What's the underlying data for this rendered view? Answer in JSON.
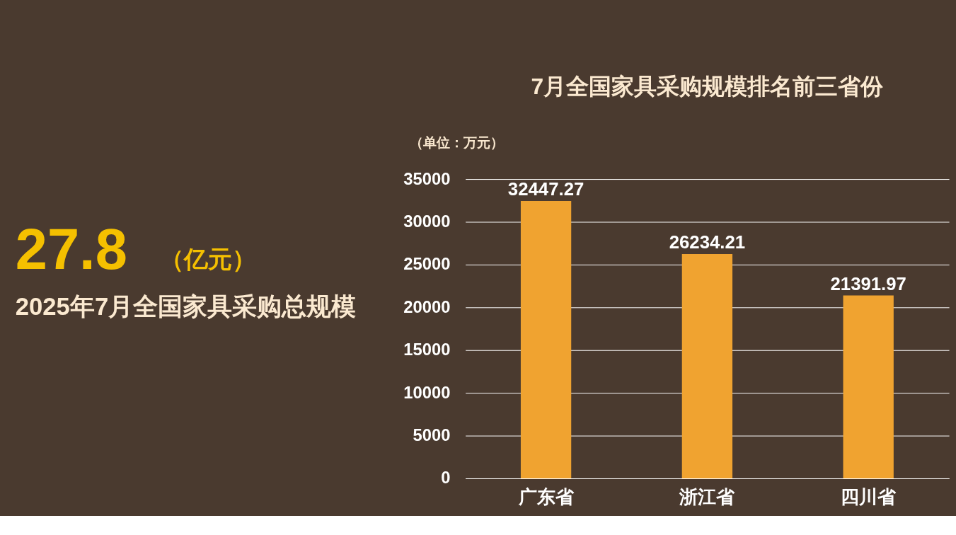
{
  "chart_data": {
    "type": "bar",
    "title": "7月全国家具采购规模排名前三省份",
    "ylabel": "（单位：万元）",
    "categories": [
      "广东省",
      "浙江省",
      "四川省"
    ],
    "values": [
      32447.27,
      26234.21,
      21391.97
    ],
    "color": "#f0a330",
    "ylim": [
      0,
      35000
    ],
    "yticks": [
      0,
      5000,
      10000,
      15000,
      20000,
      25000,
      30000,
      35000
    ],
    "grid": "y",
    "data_labels": true,
    "annotations": [
      "27.8",
      "（亿元）",
      "2025年7月全国家具采购总规模"
    ]
  }
}
